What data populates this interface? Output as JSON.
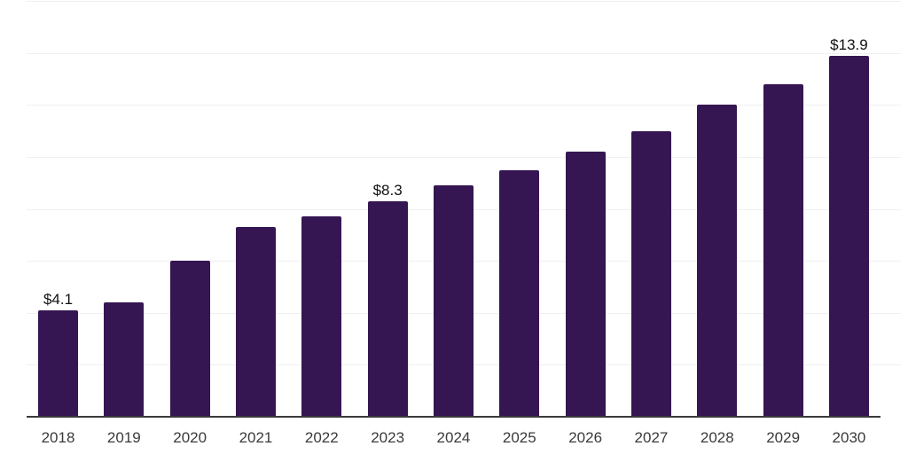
{
  "chart_data": {
    "type": "bar",
    "title": "",
    "xlabel": "",
    "ylabel": "",
    "categories": [
      "2018",
      "2019",
      "2020",
      "2021",
      "2022",
      "2023",
      "2024",
      "2025",
      "2026",
      "2027",
      "2028",
      "2029",
      "2030"
    ],
    "values": [
      4.1,
      4.4,
      6.0,
      7.3,
      7.7,
      8.3,
      8.9,
      9.5,
      10.2,
      11.0,
      12.0,
      12.8,
      13.9
    ],
    "data_labels": [
      "$4.1",
      "",
      "",
      "",
      "",
      "$8.3",
      "",
      "",
      "",
      "",
      "",
      "",
      "$13.9"
    ],
    "ylim": [
      0,
      16
    ],
    "gridline_step": 2,
    "grid": true,
    "legend": "none",
    "colors": {
      "bar": "#351552",
      "axis": "#3a3a3a",
      "gridline": "#f0f0f0",
      "value_label": "#111111",
      "tick_label": "#3a3a3a",
      "background": "#ffffff"
    }
  }
}
